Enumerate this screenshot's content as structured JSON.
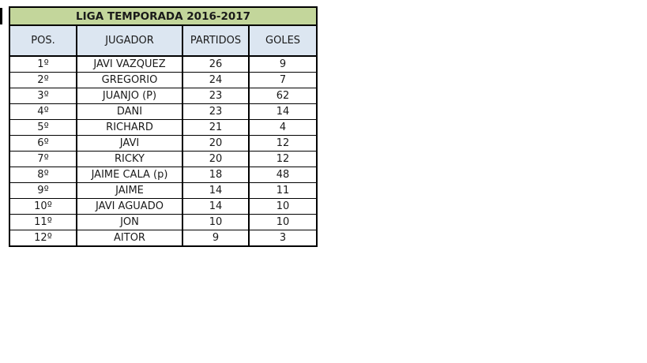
{
  "table": {
    "title": "LIGA TEMPORADA 2016-2017",
    "columns": {
      "pos": "POS.",
      "jugador": "JUGADOR",
      "partidos": "PARTIDOS",
      "goles": "GOLES"
    },
    "rows": [
      {
        "pos": "1º",
        "jugador": "JAVI VAZQUEZ",
        "partidos": "26",
        "goles": "9"
      },
      {
        "pos": "2º",
        "jugador": "GREGORIO",
        "partidos": "24",
        "goles": "7"
      },
      {
        "pos": "3º",
        "jugador": "JUANJO (P)",
        "partidos": "23",
        "goles": "62"
      },
      {
        "pos": "4º",
        "jugador": "DANI",
        "partidos": "23",
        "goles": "14"
      },
      {
        "pos": "5º",
        "jugador": "RICHARD",
        "partidos": "21",
        "goles": "4"
      },
      {
        "pos": "6º",
        "jugador": "JAVI",
        "partidos": "20",
        "goles": "12"
      },
      {
        "pos": "7º",
        "jugador": "RICKY",
        "partidos": "20",
        "goles": "12"
      },
      {
        "pos": "8º",
        "jugador": "JAIME CALA (p)",
        "partidos": "18",
        "goles": "48"
      },
      {
        "pos": "9º",
        "jugador": "JAIME",
        "partidos": "14",
        "goles": "11"
      },
      {
        "pos": "10º",
        "jugador": "JAVI AGUADO",
        "partidos": "14",
        "goles": "10"
      },
      {
        "pos": "11º",
        "jugador": "JON",
        "partidos": "10",
        "goles": "10"
      },
      {
        "pos": "12º",
        "jugador": "AITOR",
        "partidos": "9",
        "goles": "3"
      }
    ],
    "colors": {
      "title_bg": "#c3d69b",
      "header_bg": "#dce6f1",
      "border": "#000000",
      "text": "#1a1a1a"
    }
  }
}
